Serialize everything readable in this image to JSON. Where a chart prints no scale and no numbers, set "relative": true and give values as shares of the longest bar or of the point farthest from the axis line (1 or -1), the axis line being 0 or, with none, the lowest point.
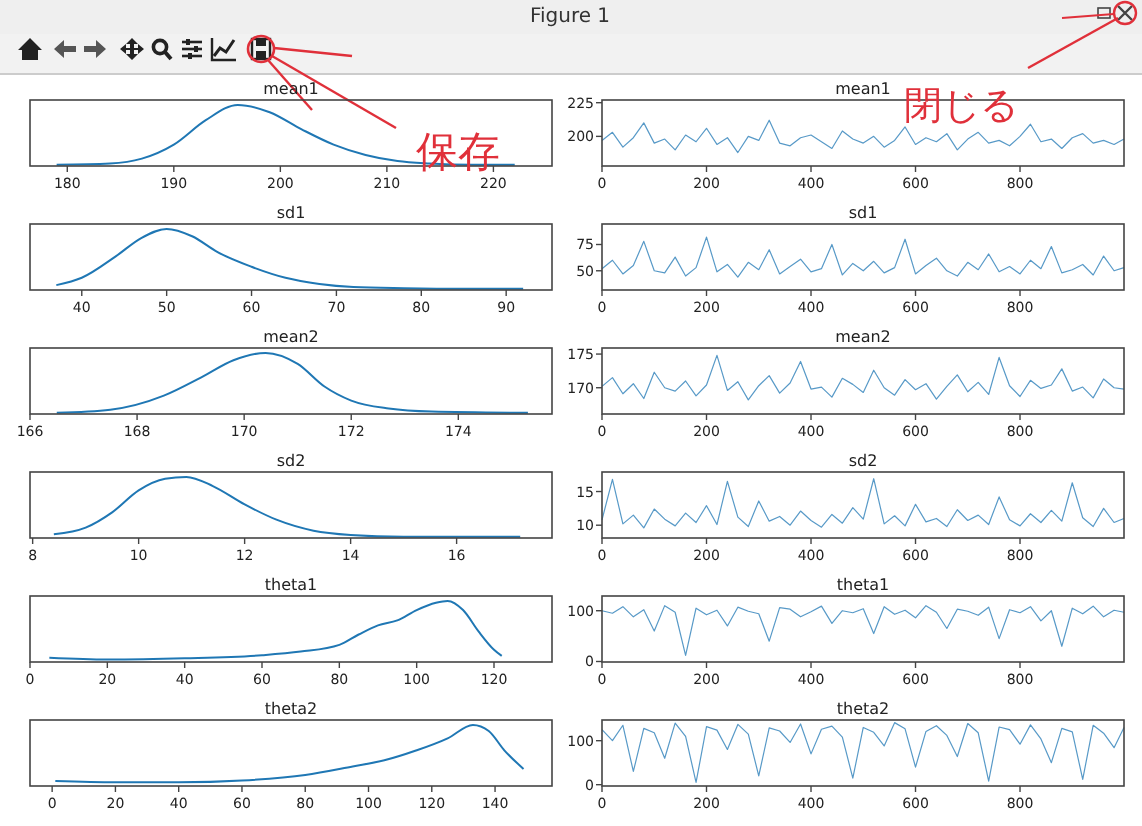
{
  "chart_data": [
    {
      "type": "line",
      "title": "mean1",
      "annotations": [
        "Figure 1",
        "保存"
      ],
      "relative": true,
      "color": "#1f77b4",
      "xlim": [
        176.5,
        225.5
      ],
      "xticks": [
        180,
        190,
        200,
        210,
        220
      ],
      "tick_labels": "x",
      "x": [
        179,
        184,
        187,
        190,
        193,
        196,
        199,
        202,
        205,
        208,
        211,
        214,
        218,
        222
      ],
      "values": [
        0.02,
        0.04,
        0.12,
        0.35,
        0.75,
        1,
        0.88,
        0.6,
        0.35,
        0.18,
        0.08,
        0.04,
        0.02,
        0.02
      ]
    },
    {
      "type": "line",
      "title": "mean1",
      "annotations": [
        "閉じる"
      ],
      "color": "#1f77b4",
      "xlim": [
        0,
        999
      ],
      "xticks": [
        0,
        200,
        400,
        600,
        800
      ],
      "ylim": [
        178,
        227
      ],
      "yticks": [
        200,
        225
      ],
      "x": [
        0,
        20,
        40,
        60,
        80,
        100,
        120,
        140,
        160,
        180,
        200,
        220,
        240,
        260,
        280,
        300,
        320,
        340,
        360,
        380,
        400,
        420,
        440,
        460,
        480,
        500,
        520,
        540,
        560,
        580,
        600,
        620,
        640,
        660,
        680,
        700,
        720,
        740,
        760,
        780,
        800,
        820,
        840,
        860,
        880,
        900,
        920,
        940,
        960,
        980,
        999
      ],
      "values": [
        197,
        203,
        192,
        199,
        210,
        195,
        198,
        190,
        201,
        196,
        206,
        194,
        199,
        188,
        200,
        197,
        212,
        195,
        193,
        199,
        201,
        196,
        191,
        204,
        198,
        195,
        200,
        192,
        197,
        207,
        194,
        199,
        196,
        202,
        190,
        198,
        203,
        195,
        197,
        193,
        200,
        209,
        196,
        198,
        191,
        199,
        202,
        195,
        197,
        194,
        198
      ]
    },
    {
      "type": "line",
      "title": "sd1",
      "relative": true,
      "color": "#1f77b4",
      "xlim": [
        33.9,
        95.4
      ],
      "xticks": [
        40,
        50,
        60,
        70,
        80,
        90
      ],
      "tick_labels": "x",
      "x": [
        37,
        40,
        44,
        47,
        50,
        53,
        56,
        60,
        64,
        68,
        72,
        78,
        85,
        92
      ],
      "values": [
        0.08,
        0.2,
        0.55,
        0.85,
        1,
        0.88,
        0.62,
        0.38,
        0.2,
        0.1,
        0.05,
        0.03,
        0.02,
        0.02
      ]
    },
    {
      "type": "line",
      "title": "sd1",
      "color": "#1f77b4",
      "xlim": [
        0,
        999
      ],
      "xticks": [
        0,
        200,
        400,
        600,
        800
      ],
      "ylim": [
        31.7,
        94.5
      ],
      "yticks": [
        50,
        75
      ],
      "x": [
        0,
        20,
        40,
        60,
        80,
        100,
        120,
        140,
        160,
        180,
        200,
        220,
        240,
        260,
        280,
        300,
        320,
        340,
        360,
        380,
        400,
        420,
        440,
        460,
        480,
        500,
        520,
        540,
        560,
        580,
        600,
        620,
        640,
        660,
        680,
        700,
        720,
        740,
        760,
        780,
        800,
        820,
        840,
        860,
        880,
        900,
        920,
        940,
        960,
        980,
        999
      ],
      "values": [
        52,
        60,
        47,
        55,
        78,
        50,
        48,
        63,
        45,
        53,
        82,
        49,
        56,
        44,
        58,
        51,
        70,
        47,
        54,
        61,
        49,
        52,
        75,
        46,
        57,
        50,
        59,
        48,
        53,
        80,
        47,
        55,
        62,
        50,
        45,
        58,
        51,
        66,
        49,
        54,
        47,
        60,
        52,
        73,
        48,
        51,
        56,
        46,
        64,
        50,
        53
      ]
    },
    {
      "type": "line",
      "title": "mean2",
      "relative": true,
      "color": "#1f77b4",
      "xlim": [
        166,
        175.75
      ],
      "xticks": [
        166,
        168,
        170,
        172,
        174
      ],
      "tick_labels": "x",
      "x": [
        166.5,
        167.5,
        168.5,
        169.2,
        169.8,
        170.4,
        171,
        171.5,
        172,
        172.7,
        173.5,
        175.3
      ],
      "values": [
        0.02,
        0.07,
        0.3,
        0.6,
        0.88,
        1,
        0.82,
        0.45,
        0.22,
        0.09,
        0.04,
        0.02
      ]
    },
    {
      "type": "line",
      "title": "mean2",
      "color": "#1f77b4",
      "xlim": [
        0,
        999
      ],
      "xticks": [
        0,
        200,
        400,
        600,
        800
      ],
      "ylim": [
        166.1,
        175.9
      ],
      "yticks": [
        170,
        175
      ],
      "x": [
        0,
        20,
        40,
        60,
        80,
        100,
        120,
        140,
        160,
        180,
        200,
        220,
        240,
        260,
        280,
        300,
        320,
        340,
        360,
        380,
        400,
        420,
        440,
        460,
        480,
        500,
        520,
        540,
        560,
        580,
        600,
        620,
        640,
        660,
        680,
        700,
        720,
        740,
        760,
        780,
        800,
        820,
        840,
        860,
        880,
        900,
        920,
        940,
        960,
        980,
        999
      ],
      "values": [
        170.2,
        171.5,
        169.1,
        170.6,
        168.4,
        172.3,
        170.0,
        169.5,
        171.0,
        168.8,
        170.4,
        174.8,
        169.6,
        170.9,
        168.2,
        170.3,
        171.8,
        169.2,
        170.7,
        173.9,
        169.8,
        170.1,
        168.6,
        171.4,
        170.5,
        169.3,
        172.6,
        170.0,
        168.9,
        171.2,
        169.7,
        170.6,
        168.3,
        170.2,
        171.9,
        169.4,
        170.8,
        169.0,
        174.5,
        170.3,
        168.7,
        171.1,
        169.9,
        170.4,
        172.8,
        169.5,
        170.1,
        168.5,
        171.3,
        170.0,
        169.8
      ]
    },
    {
      "type": "line",
      "title": "sd2",
      "relative": true,
      "color": "#1f77b4",
      "xlim": [
        7.95,
        17.8
      ],
      "xticks": [
        8,
        10,
        12,
        14,
        16
      ],
      "tick_labels": "x",
      "x": [
        8.4,
        9,
        9.5,
        10,
        10.5,
        10.9,
        11.4,
        12,
        12.6,
        13.3,
        14,
        15,
        17.2
      ],
      "values": [
        0.06,
        0.17,
        0.42,
        0.78,
        0.97,
        1,
        0.85,
        0.55,
        0.3,
        0.12,
        0.05,
        0.02,
        0.02
      ]
    },
    {
      "type": "line",
      "title": "sd2",
      "color": "#1f77b4",
      "xlim": [
        0,
        999
      ],
      "xticks": [
        0,
        200,
        400,
        600,
        800
      ],
      "ylim": [
        8.1,
        17.9
      ],
      "yticks": [
        10,
        15
      ],
      "x": [
        0,
        20,
        40,
        60,
        80,
        100,
        120,
        140,
        160,
        180,
        200,
        220,
        240,
        260,
        280,
        300,
        320,
        340,
        360,
        380,
        400,
        420,
        440,
        460,
        480,
        500,
        520,
        540,
        560,
        580,
        600,
        620,
        640,
        660,
        680,
        700,
        720,
        740,
        760,
        780,
        800,
        820,
        840,
        860,
        880,
        900,
        920,
        940,
        960,
        980,
        999
      ],
      "values": [
        10.8,
        16.8,
        10.2,
        11.5,
        9.6,
        12.4,
        10.9,
        9.9,
        11.8,
        10.4,
        12.9,
        10.1,
        16.5,
        11.2,
        9.8,
        13.6,
        10.6,
        11.3,
        10.0,
        12.1,
        10.7,
        9.7,
        11.6,
        10.3,
        12.6,
        10.9,
        16.9,
        10.2,
        11.4,
        9.9,
        13.1,
        10.5,
        11.0,
        9.8,
        12.3,
        10.7,
        11.5,
        10.1,
        14.2,
        10.8,
        9.9,
        11.7,
        10.4,
        12.2,
        10.6,
        16.3,
        11.1,
        9.8,
        12.5,
        10.4,
        11.0
      ]
    },
    {
      "type": "line",
      "title": "theta1",
      "relative": true,
      "color": "#1f77b4",
      "xlim": [
        0,
        135
      ],
      "xticks": [
        0,
        20,
        40,
        60,
        80,
        100,
        120
      ],
      "tick_labels": "x",
      "x": [
        5,
        20,
        40,
        60,
        70,
        80,
        85,
        90,
        95,
        100,
        105,
        108,
        112,
        116,
        120,
        122
      ],
      "values": [
        0.07,
        0.04,
        0.06,
        0.11,
        0.17,
        0.28,
        0.45,
        0.6,
        0.68,
        0.85,
        0.97,
        1,
        0.85,
        0.5,
        0.2,
        0.1
      ]
    },
    {
      "type": "line",
      "title": "theta1",
      "color": "#1f77b4",
      "xlim": [
        0,
        999
      ],
      "xticks": [
        0,
        200,
        400,
        600,
        800
      ],
      "ylim": [
        -1,
        129
      ],
      "yticks": [
        0,
        100
      ],
      "x": [
        0,
        20,
        40,
        60,
        80,
        100,
        120,
        140,
        160,
        180,
        200,
        220,
        240,
        260,
        280,
        300,
        320,
        340,
        360,
        380,
        400,
        420,
        440,
        460,
        480,
        500,
        520,
        540,
        560,
        580,
        600,
        620,
        640,
        660,
        680,
        700,
        720,
        740,
        760,
        780,
        800,
        820,
        840,
        860,
        880,
        900,
        920,
        940,
        960,
        980,
        999
      ],
      "values": [
        100,
        95,
        108,
        88,
        102,
        60,
        110,
        97,
        12,
        105,
        92,
        101,
        70,
        107,
        99,
        94,
        40,
        106,
        103,
        88,
        98,
        109,
        75,
        100,
        96,
        104,
        55,
        108,
        93,
        101,
        86,
        110,
        97,
        65,
        103,
        99,
        91,
        107,
        45,
        102,
        96,
        108,
        80,
        100,
        30,
        105,
        94,
        109,
        88,
        101,
        97
      ]
    },
    {
      "type": "line",
      "title": "theta2",
      "relative": true,
      "color": "#1f77b4",
      "xlim": [
        -7,
        158
      ],
      "xticks": [
        0,
        20,
        40,
        60,
        80,
        100,
        120,
        140
      ],
      "tick_labels": "x",
      "x": [
        1,
        20,
        40,
        60,
        80,
        95,
        105,
        115,
        125,
        133,
        138,
        143,
        149
      ],
      "values": [
        0.08,
        0.06,
        0.06,
        0.09,
        0.18,
        0.32,
        0.42,
        0.58,
        0.78,
        1,
        0.9,
        0.58,
        0.28
      ]
    },
    {
      "type": "line",
      "title": "theta2",
      "color": "#1f77b4",
      "xlim": [
        0,
        999
      ],
      "xticks": [
        0,
        200,
        400,
        600,
        800
      ],
      "ylim": [
        -3,
        147
      ],
      "yticks": [
        0,
        100
      ],
      "x": [
        0,
        20,
        40,
        60,
        80,
        100,
        120,
        140,
        160,
        180,
        200,
        220,
        240,
        260,
        280,
        300,
        320,
        340,
        360,
        380,
        400,
        420,
        440,
        460,
        480,
        500,
        520,
        540,
        560,
        580,
        600,
        620,
        640,
        660,
        680,
        700,
        720,
        740,
        760,
        780,
        800,
        820,
        840,
        860,
        880,
        900,
        920,
        940,
        960,
        980,
        999
      ],
      "values": [
        125,
        100,
        135,
        30,
        128,
        118,
        60,
        140,
        110,
        5,
        132,
        124,
        80,
        137,
        115,
        20,
        129,
        122,
        96,
        138,
        70,
        126,
        133,
        108,
        15,
        130,
        119,
        88,
        141,
        127,
        40,
        121,
        134,
        112,
        64,
        139,
        118,
        8,
        131,
        125,
        92,
        136,
        104,
        50,
        128,
        120,
        12,
        135,
        117,
        84,
        130
      ]
    }
  ]
}
